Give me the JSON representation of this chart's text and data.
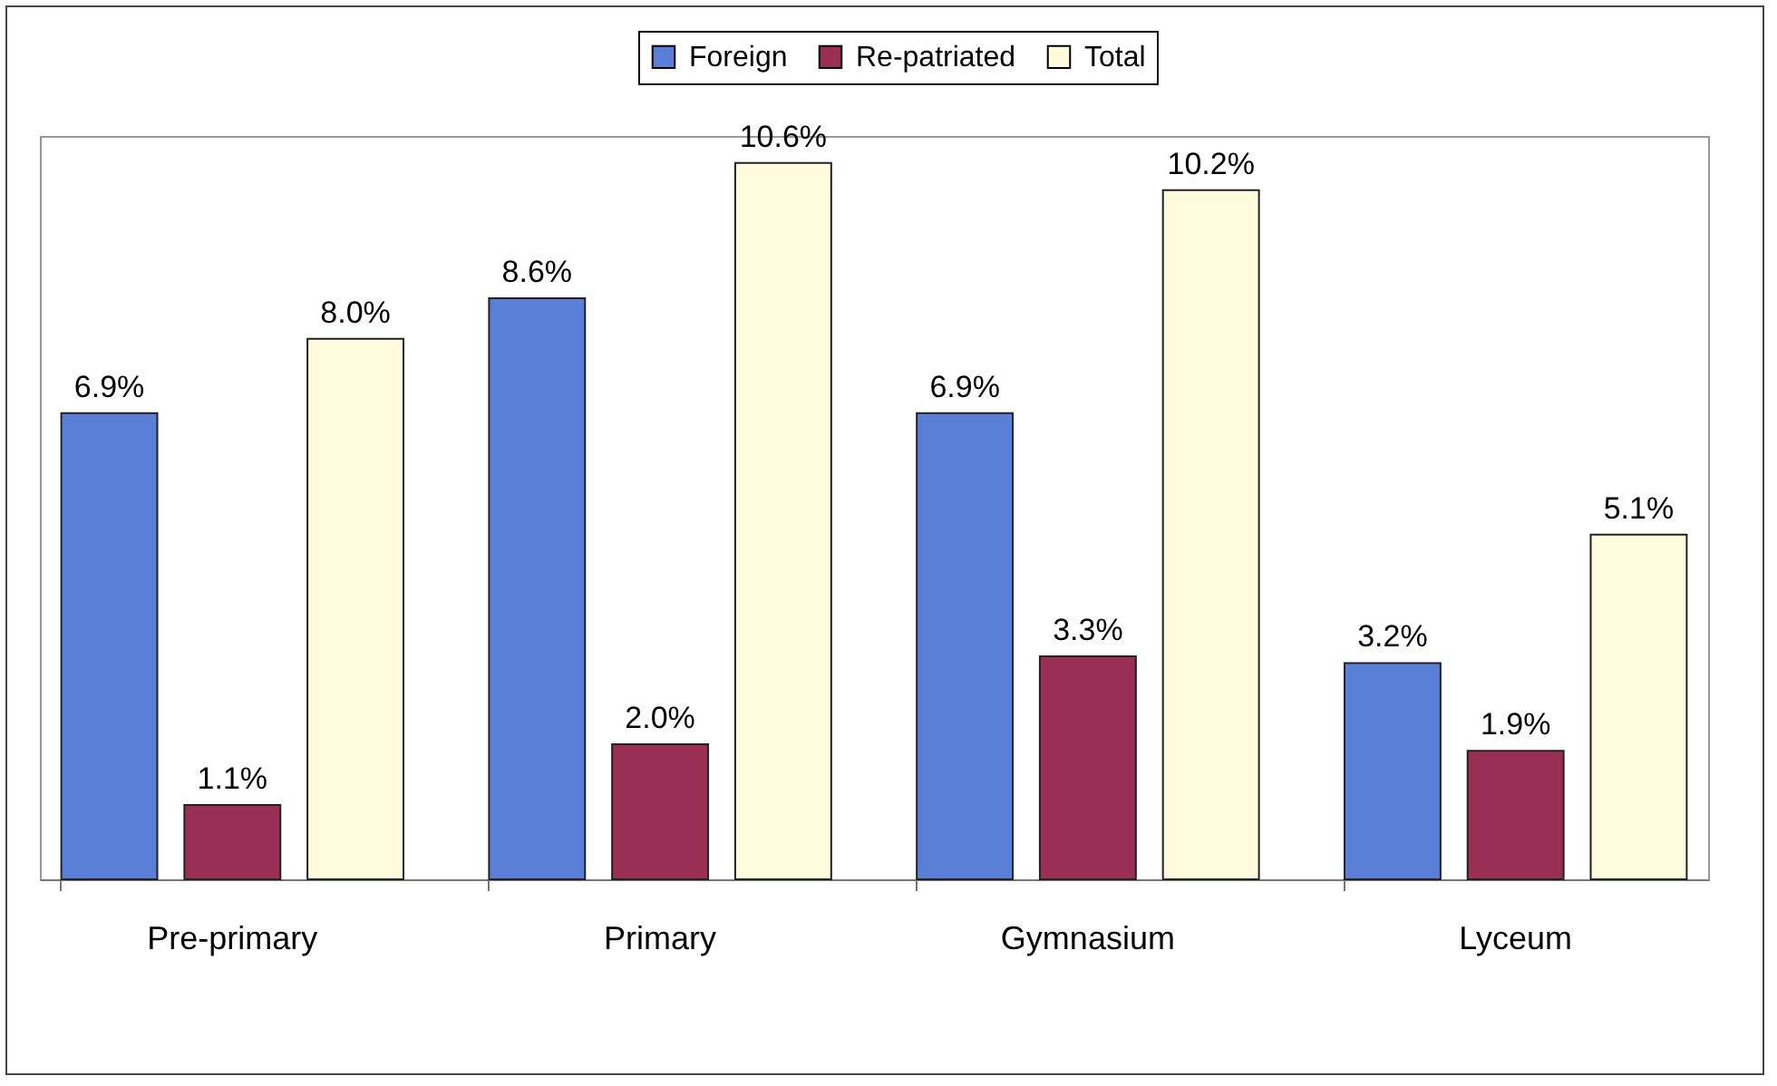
{
  "chart_data": {
    "type": "bar",
    "categories": [
      "Pre-primary",
      "Primary",
      "Gymnasium",
      "Lyceum"
    ],
    "series": [
      {
        "name": "Foreign",
        "color": "#5b7fd6",
        "values": [
          6.9,
          8.6,
          6.9,
          3.2
        ],
        "value_labels": [
          "6.9%",
          "8.6%",
          "6.9%",
          "3.2%"
        ]
      },
      {
        "name": "Re-patriated",
        "color": "#9a2f55",
        "values": [
          1.1,
          2.0,
          3.3,
          1.9
        ],
        "value_labels": [
          "1.1%",
          "2.0%",
          "3.3%",
          "1.9%"
        ]
      },
      {
        "name": "Total",
        "color": "#fffbdc",
        "values": [
          8.0,
          10.6,
          10.2,
          5.1
        ],
        "value_labels": [
          "8.0%",
          "10.6%",
          "10.2%",
          "5.1%"
        ]
      }
    ],
    "legend": "top",
    "grid": false
  }
}
